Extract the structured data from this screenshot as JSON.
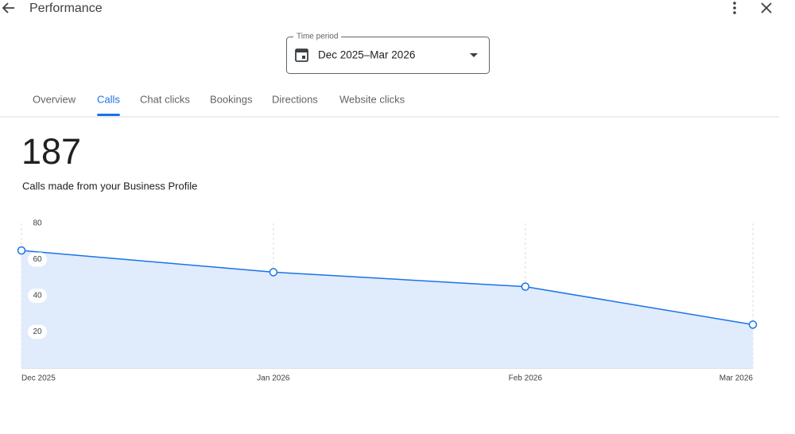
{
  "header": {
    "title": "Performance"
  },
  "time_period": {
    "label": "Time period",
    "value": "Dec 2025–Mar 2026"
  },
  "tabs": {
    "items": [
      "Overview",
      "Calls",
      "Chat clicks",
      "Bookings",
      "Directions",
      "Website clicks"
    ],
    "active": 1
  },
  "summary": {
    "total": "187",
    "description": "Calls made from your Business Profile"
  },
  "chart_data": {
    "type": "area",
    "categories": [
      "Dec 2025",
      "Jan 2026",
      "Feb 2026",
      "Mar 2026"
    ],
    "values": [
      65,
      53,
      45,
      24
    ],
    "color": "#1a73e8",
    "fill": "#e0ebfc",
    "ylim": [
      0,
      80
    ],
    "yticks": [
      20,
      40,
      60,
      80
    ],
    "grid": true
  }
}
